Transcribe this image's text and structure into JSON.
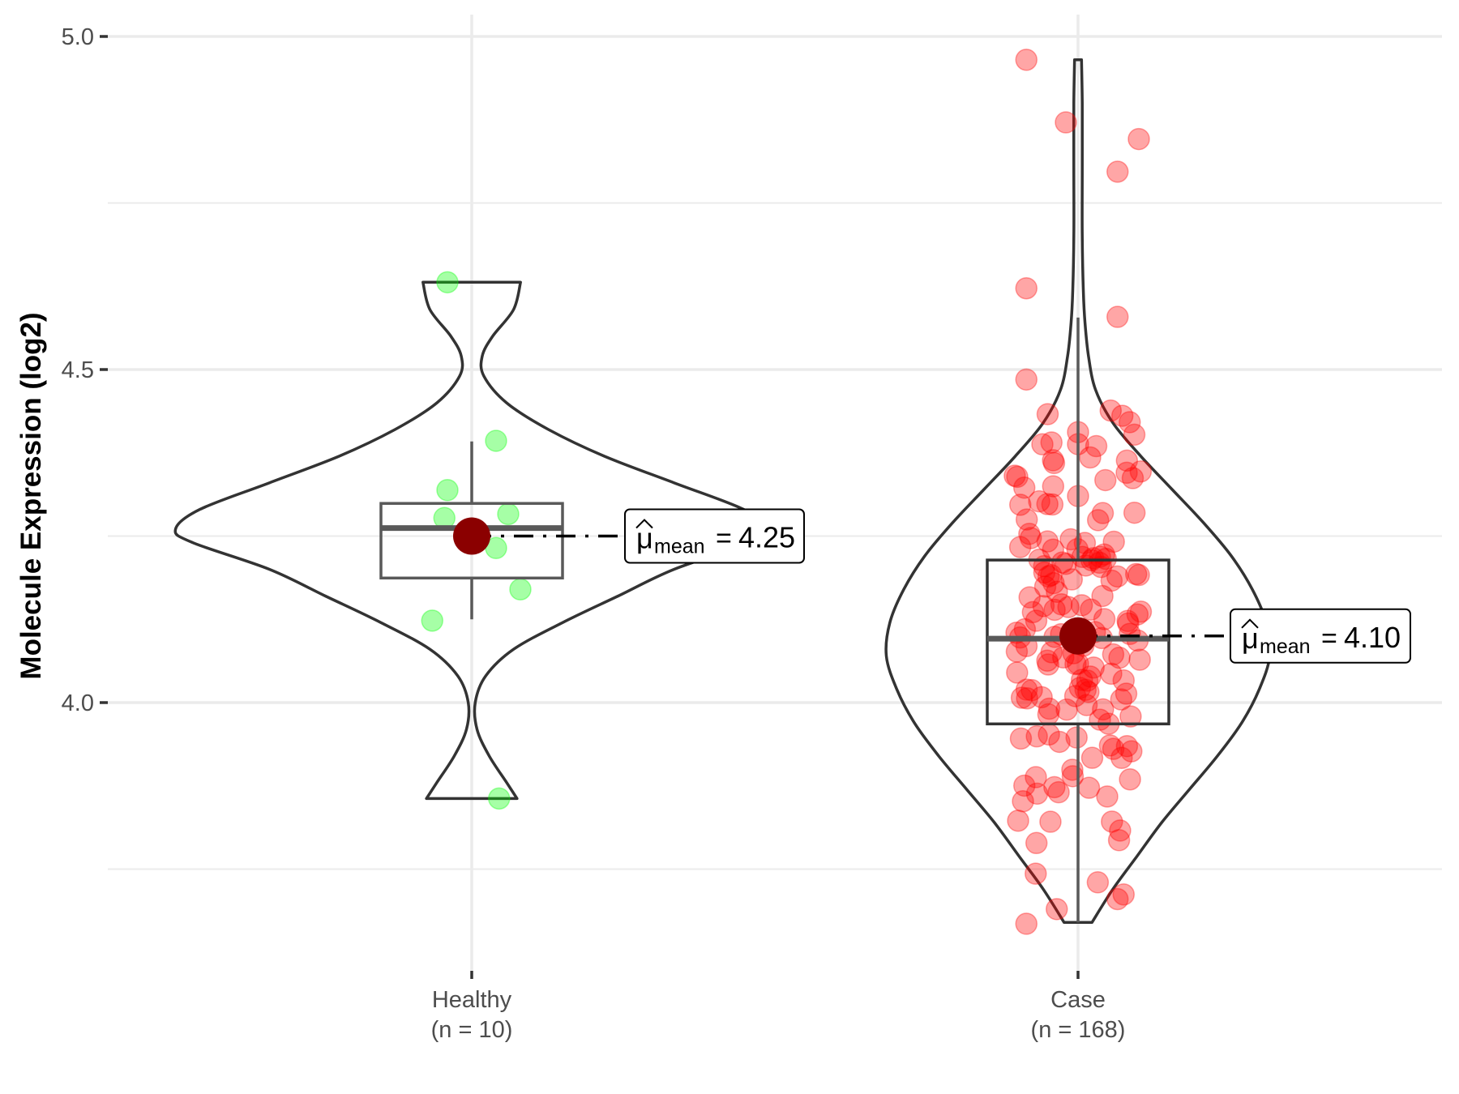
{
  "chart_data": {
    "type": "violin",
    "title": "",
    "xlabel": "",
    "ylabel": "Molecule Expression (log2)",
    "ylim": [
      3.62,
      5.03
    ],
    "yticks": [
      {
        "value": 4.0,
        "label": "4.0"
      },
      {
        "value": 4.5,
        "label": "4.5"
      },
      {
        "value": 5.0,
        "label": "5.0"
      }
    ],
    "minor_gridlines": [
      3.75,
      4.25,
      4.75
    ],
    "grid": true,
    "categories": [
      {
        "name": "Healthy",
        "n_label": "(n = 10)",
        "color": "#00ff00",
        "mean": 4.25,
        "mean_label_symbol": "μ",
        "mean_label_sub": "mean",
        "mean_label_eq": "=",
        "mean_label_value": "4.25",
        "box": {
          "q1": 4.187,
          "median": 4.262,
          "q3": 4.299,
          "whisker_low": 4.125,
          "whisker_high": 4.392
        },
        "violin": {
          "min": 3.856,
          "max": 4.631,
          "density": [
            [
              3.856,
              0.13
            ],
            [
              3.88,
              0.1
            ],
            [
              3.92,
              0.05
            ],
            [
              3.96,
              0.015
            ],
            [
              4.0,
              0.01
            ],
            [
              4.04,
              0.04
            ],
            [
              4.08,
              0.12
            ],
            [
              4.12,
              0.26
            ],
            [
              4.16,
              0.42
            ],
            [
              4.2,
              0.58
            ],
            [
              4.24,
              0.8
            ],
            [
              4.26,
              0.85
            ],
            [
              4.29,
              0.78
            ],
            [
              4.33,
              0.58
            ],
            [
              4.37,
              0.38
            ],
            [
              4.41,
              0.22
            ],
            [
              4.45,
              0.1
            ],
            [
              4.49,
              0.035
            ],
            [
              4.52,
              0.03
            ],
            [
              4.55,
              0.06
            ],
            [
              4.59,
              0.12
            ],
            [
              4.631,
              0.14
            ]
          ]
        },
        "points": [
          {
            "x_jitter": -0.08,
            "y": 4.631
          },
          {
            "x_jitter": 0.08,
            "y": 4.393
          },
          {
            "x_jitter": -0.08,
            "y": 4.319
          },
          {
            "x_jitter": -0.09,
            "y": 4.277
          },
          {
            "x_jitter": 0.12,
            "y": 4.283
          },
          {
            "x_jitter": 0.08,
            "y": 4.232
          },
          {
            "x_jitter": 0.16,
            "y": 4.17
          },
          {
            "x_jitter": -0.13,
            "y": 4.123
          },
          {
            "x_jitter": 0.09,
            "y": 3.856
          },
          {
            "x_jitter": -0.02,
            "y": 4.25
          }
        ]
      },
      {
        "name": "Case",
        "n_label": "(n = 168)",
        "color": "#ff0000",
        "mean": 4.1,
        "mean_label_symbol": "μ",
        "mean_label_sub": "mean",
        "mean_label_eq": "=",
        "mean_label_value": "4.10",
        "box": {
          "q1": 3.968,
          "median": 4.096,
          "q3": 4.214,
          "whisker_low": 3.67,
          "whisker_high": 4.578
        },
        "violin": {
          "min": 3.67,
          "max": 4.965,
          "density": [
            [
              3.67,
              0.04
            ],
            [
              3.72,
              0.1
            ],
            [
              3.77,
              0.17
            ],
            [
              3.82,
              0.24
            ],
            [
              3.87,
              0.32
            ],
            [
              3.92,
              0.4
            ],
            [
              3.97,
              0.47
            ],
            [
              4.02,
              0.52
            ],
            [
              4.07,
              0.55
            ],
            [
              4.12,
              0.54
            ],
            [
              4.17,
              0.5
            ],
            [
              4.22,
              0.44
            ],
            [
              4.27,
              0.36
            ],
            [
              4.32,
              0.27
            ],
            [
              4.37,
              0.18
            ],
            [
              4.42,
              0.1
            ],
            [
              4.47,
              0.05
            ],
            [
              4.52,
              0.03
            ],
            [
              4.57,
              0.02
            ],
            [
              4.62,
              0.015
            ],
            [
              4.7,
              0.012
            ],
            [
              4.8,
              0.012
            ],
            [
              4.9,
              0.012
            ],
            [
              4.965,
              0.01
            ]
          ]
        },
        "points_seed": 168,
        "points": [
          {
            "x_jitter": -0.17,
            "y": 4.965
          },
          {
            "x_jitter": -0.04,
            "y": 4.871
          },
          {
            "x_jitter": 0.2,
            "y": 4.846
          },
          {
            "x_jitter": 0.13,
            "y": 4.797
          },
          {
            "x_jitter": -0.17,
            "y": 4.622
          },
          {
            "x_jitter": 0.13,
            "y": 4.579
          },
          {
            "x_jitter": -0.17,
            "y": 4.485
          },
          {
            "x_jitter": -0.1,
            "y": 4.433
          },
          {
            "x_jitter": 0.17,
            "y": 4.421
          },
          {
            "x_jitter": -0.2,
            "y": 4.339
          },
          {
            "x_jitter": -0.19,
            "y": 4.297
          },
          {
            "x_jitter": 0.0,
            "y": 4.406
          },
          {
            "x_jitter": 0.0,
            "y": 4.388
          },
          {
            "x_jitter": 0.06,
            "y": 4.385
          },
          {
            "x_jitter": 0.04,
            "y": 4.368
          },
          {
            "x_jitter": 0.0,
            "y": 4.31
          },
          {
            "x_jitter": 0.09,
            "y": 4.334
          },
          {
            "x_jitter": 0.16,
            "y": 4.345
          },
          {
            "x_jitter": 0.18,
            "y": 4.337
          },
          {
            "x_jitter": -0.17,
            "y": 3.668
          },
          {
            "x_jitter": -0.07,
            "y": 3.69
          },
          {
            "x_jitter": 0.13,
            "y": 3.705
          },
          {
            "x_jitter": 0.15,
            "y": 3.712
          }
        ]
      }
    ]
  }
}
